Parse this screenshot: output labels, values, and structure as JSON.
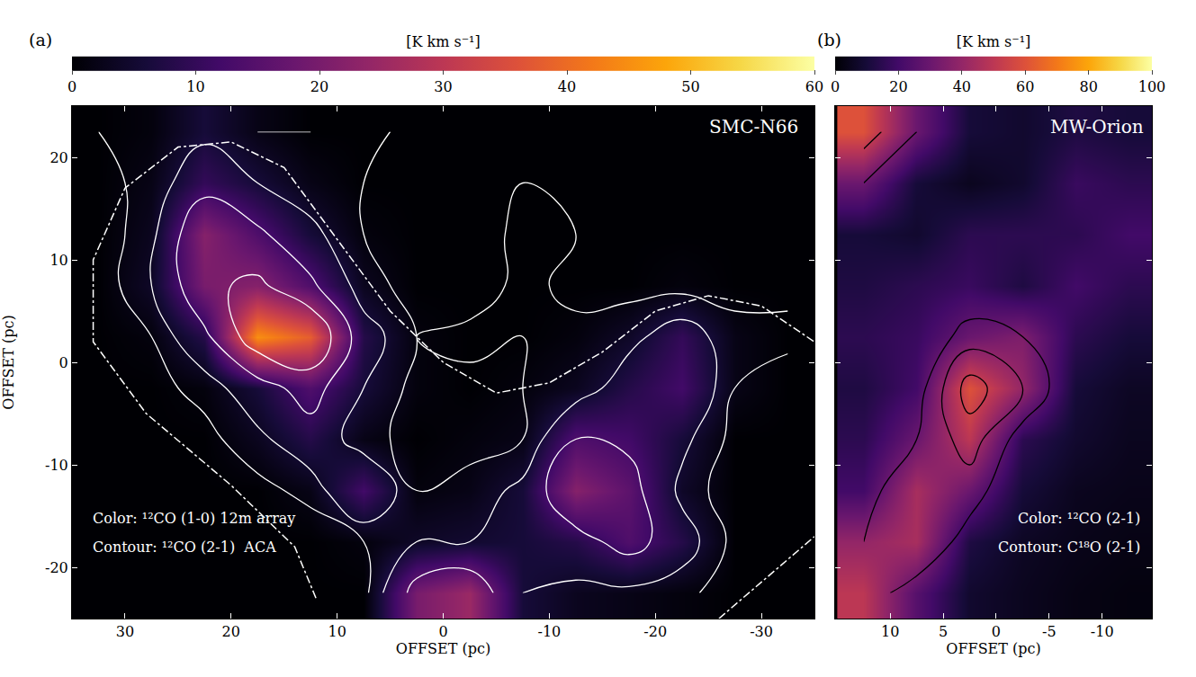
{
  "chart_data": [
    {
      "type": "heatmap",
      "title": "SMC-N66",
      "panel_label": "(a)",
      "x_label": "OFFSET (pc)",
      "y_label": "OFFSET (pc)",
      "x": [
        32.5,
        27.5,
        22.5,
        17.5,
        12.5,
        7.5,
        2.5,
        -2.5,
        -7.5,
        -12.5,
        -17.5,
        -22.5,
        -27.5,
        -32.5
      ],
      "y": [
        -22.5,
        -17.5,
        -12.5,
        -7.5,
        -2.5,
        2.5,
        7.5,
        12.5,
        17.5,
        22.5
      ],
      "z": [
        [
          0,
          0,
          0,
          0,
          0,
          0,
          20,
          25,
          6,
          3,
          2,
          1,
          0,
          0
        ],
        [
          0,
          0,
          0,
          0,
          0,
          1,
          4,
          5,
          6,
          8,
          14,
          8,
          0,
          0
        ],
        [
          0,
          0,
          0,
          0,
          2,
          12,
          1,
          2,
          6,
          22,
          16,
          4,
          0,
          0
        ],
        [
          0,
          0,
          0,
          3,
          8,
          2,
          0,
          1,
          2,
          14,
          12,
          6,
          0,
          0
        ],
        [
          0,
          0,
          1,
          6,
          14,
          6,
          1,
          0,
          1,
          3,
          8,
          12,
          2,
          0
        ],
        [
          0,
          1,
          8,
          45,
          38,
          8,
          1,
          0,
          0,
          1,
          4,
          10,
          2,
          0
        ],
        [
          0,
          4,
          20,
          22,
          14,
          3,
          0,
          0,
          0,
          0,
          0,
          1,
          0,
          0
        ],
        [
          0,
          3,
          22,
          14,
          6,
          1,
          0,
          0,
          0,
          0,
          0,
          0,
          0,
          0
        ],
        [
          0,
          2,
          10,
          6,
          2,
          0,
          0,
          0,
          0,
          0,
          0,
          0,
          0,
          0
        ],
        [
          0,
          1,
          6,
          2,
          0,
          0,
          0,
          0,
          0,
          0,
          0,
          0,
          0,
          0
        ]
      ],
      "xlim": [
        35,
        -35
      ],
      "ylim": [
        -25,
        25
      ],
      "xticks": [
        30,
        20,
        10,
        0,
        -10,
        -20,
        -30
      ],
      "yticks": [
        -20,
        -10,
        0,
        10,
        20
      ],
      "colorbar": {
        "title": "[K km s⁻¹]",
        "range": [
          0,
          60
        ],
        "ticks": [
          0,
          10,
          20,
          30,
          40,
          50,
          60
        ]
      },
      "contour": {
        "color": "white",
        "levels": [
          2,
          5,
          10,
          15
        ],
        "z": [
          [
            0,
            0,
            0,
            0,
            0,
            1,
            12,
            14,
            5,
            4,
            4,
            3,
            0,
            0
          ],
          [
            0,
            0,
            0,
            0,
            0,
            2,
            5,
            5,
            6,
            8,
            12,
            7,
            1,
            0
          ],
          [
            0,
            0,
            0,
            1,
            3,
            10,
            2,
            3,
            6,
            15,
            12,
            4,
            0,
            0
          ],
          [
            0,
            0,
            1,
            4,
            8,
            3,
            1,
            1,
            2,
            10,
            9,
            6,
            1,
            0
          ],
          [
            0,
            1,
            3,
            8,
            12,
            5,
            1,
            1,
            2,
            3,
            7,
            10,
            2,
            0
          ],
          [
            0,
            2,
            9,
            18,
            20,
            7,
            2,
            3,
            2,
            3,
            4,
            7,
            3,
            3
          ],
          [
            0,
            5,
            14,
            16,
            11,
            3,
            1,
            0,
            3,
            1,
            1,
            1,
            1,
            1
          ],
          [
            0,
            4,
            15,
            11,
            6,
            2,
            1,
            0,
            3,
            2,
            0,
            0,
            0,
            0
          ],
          [
            1,
            3,
            8,
            5,
            3,
            2,
            1,
            0,
            2,
            2,
            0,
            0,
            0,
            0
          ],
          [
            2,
            4,
            4,
            2,
            2,
            3,
            1,
            0,
            0,
            0,
            0,
            0,
            0,
            0
          ]
        ]
      },
      "field_edge": {
        "x": [
          12,
          14,
          20,
          28,
          33,
          33,
          30,
          25,
          20,
          15,
          10,
          5,
          0,
          -5,
          -10,
          -15,
          -20,
          -25,
          -30,
          -35,
          null,
          -26,
          -35
        ],
        "y": [
          -23,
          -18,
          -12,
          -5,
          2,
          10,
          17,
          21,
          21.5,
          19,
          12,
          5,
          0,
          -3,
          -2,
          1,
          5,
          6.5,
          5.5,
          2,
          null,
          -25,
          -17
        ]
      },
      "annotations": [
        "Color: ¹²CO (1-0) 12m array",
        "Contour: ¹²CO (2-1)  ACA"
      ]
    },
    {
      "type": "heatmap",
      "title": "MW-Orion",
      "panel_label": "(b)",
      "x_label": "OFFSET (pc)",
      "tick_labels": "x",
      "x": [
        12.5,
        7.5,
        2.5,
        -2.5,
        -7.5,
        -12.5
      ],
      "y": [
        -22.5,
        -17.5,
        -12.5,
        -7.5,
        -2.5,
        2.5,
        7.5,
        12.5,
        17.5,
        22.5
      ],
      "z": [
        [
          50,
          25,
          8,
          5,
          3,
          2
        ],
        [
          40,
          45,
          12,
          6,
          4,
          3
        ],
        [
          20,
          45,
          30,
          10,
          5,
          4
        ],
        [
          15,
          30,
          50,
          15,
          8,
          5
        ],
        [
          12,
          20,
          60,
          40,
          10,
          6
        ],
        [
          15,
          18,
          30,
          35,
          15,
          10
        ],
        [
          12,
          15,
          18,
          12,
          20,
          15
        ],
        [
          10,
          8,
          15,
          15,
          15,
          20
        ],
        [
          30,
          10,
          5,
          8,
          18,
          15
        ],
        [
          60,
          30,
          10,
          8,
          12,
          10
        ]
      ],
      "xlim": [
        15.2,
        -14.7
      ],
      "ylim": [
        -25,
        25
      ],
      "xticks": [
        10,
        5,
        0,
        -5,
        -10
      ],
      "yticks": [
        -20,
        -10,
        0,
        10,
        20
      ],
      "colorbar": {
        "title": "[K km s⁻¹]",
        "range": [
          0,
          100
        ],
        "ticks": [
          0,
          20,
          40,
          60,
          80,
          100
        ]
      },
      "contour": {
        "color": "black",
        "levels": [
          2,
          4,
          6
        ],
        "z": [
          [
            3,
            1,
            0,
            0,
            0,
            0
          ],
          [
            2,
            4,
            1,
            0,
            0,
            0
          ],
          [
            1,
            4,
            3,
            0,
            0,
            0
          ],
          [
            0,
            2,
            5,
            1,
            0,
            0
          ],
          [
            0,
            1,
            7,
            4,
            0,
            0
          ],
          [
            0,
            0,
            3,
            2,
            0,
            0
          ],
          [
            0,
            0,
            0,
            0,
            0,
            0
          ],
          [
            0,
            0,
            0,
            0,
            0,
            0
          ],
          [
            2,
            0,
            0,
            0,
            0,
            0
          ],
          [
            5,
            2,
            0,
            0,
            0,
            0
          ]
        ]
      },
      "annotations": [
        "Color: ¹²CO (2-1)",
        "Contour: C¹⁸O (2-1)"
      ]
    }
  ]
}
